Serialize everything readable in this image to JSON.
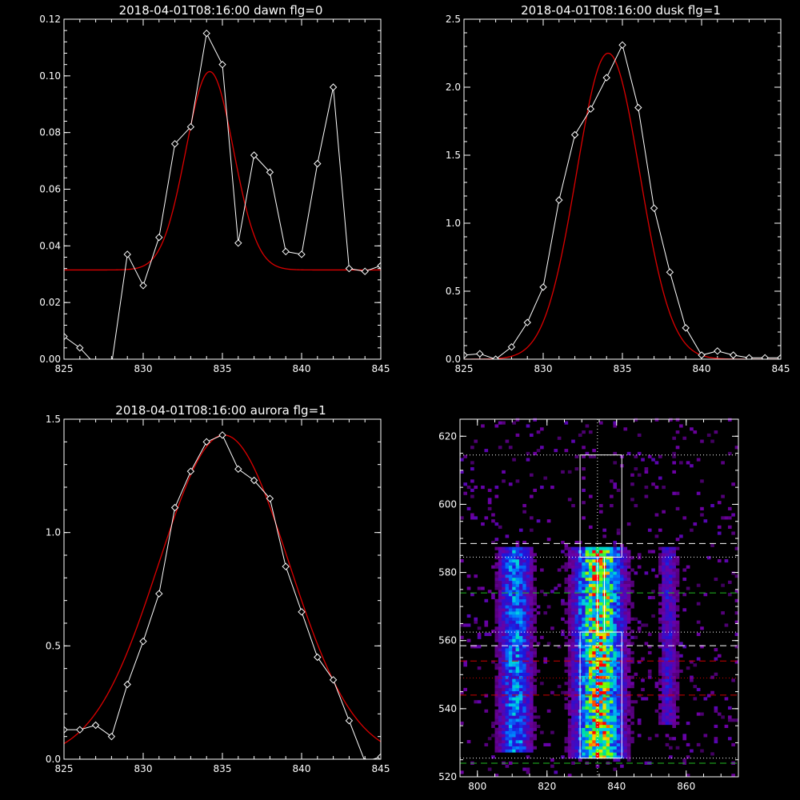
{
  "colors": {
    "background": "#000000",
    "axis": "#ffffff",
    "data": "#ffffff",
    "fit": "#dd0000"
  },
  "chart_data": [
    {
      "type": "line",
      "title": "2018-04-01T08:16:00 dawn flg=0",
      "xlim": [
        825,
        845
      ],
      "ylim": [
        0,
        0.12
      ],
      "xticks": [
        "825",
        "830",
        "835",
        "840",
        "845"
      ],
      "yticks": [
        "0.00",
        "0.02",
        "0.04",
        "0.06",
        "0.08",
        "0.10",
        "0.12"
      ],
      "series": [
        {
          "role": "data",
          "marker": "diamond",
          "x": [
            825,
            826,
            827,
            828,
            829,
            830,
            831,
            832,
            833,
            834,
            835,
            836,
            837,
            838,
            839,
            840,
            841,
            842,
            843,
            844,
            845
          ],
          "y": [
            0.008,
            0.004,
            -0.002,
            -0.002,
            0.037,
            0.026,
            0.043,
            0.076,
            0.082,
            0.115,
            0.104,
            0.041,
            0.072,
            0.066,
            0.038,
            0.037,
            0.069,
            0.096,
            0.032,
            0.031,
            0.033
          ]
        },
        {
          "role": "fit",
          "shape": "gaussian",
          "peak_x": 834.2,
          "peak_y": 0.1015,
          "baseline": 0.0315,
          "sigma": 1.5
        }
      ]
    },
    {
      "type": "line",
      "title": "2018-04-01T08:16:00 dusk flg=1",
      "xlim": [
        825,
        845
      ],
      "ylim": [
        0,
        2.5
      ],
      "xticks": [
        "825",
        "830",
        "835",
        "840",
        "845"
      ],
      "yticks": [
        "0.0",
        "0.5",
        "1.0",
        "1.5",
        "2.0",
        "2.5"
      ],
      "series": [
        {
          "role": "data",
          "marker": "diamond",
          "x": [
            825,
            826,
            827,
            828,
            829,
            830,
            831,
            832,
            833,
            834,
            835,
            836,
            837,
            838,
            839,
            840,
            841,
            842,
            843,
            844,
            845
          ],
          "y": [
            0.03,
            0.04,
            0.0,
            0.09,
            0.27,
            0.53,
            1.17,
            1.65,
            1.84,
            2.07,
            2.31,
            1.85,
            1.11,
            0.64,
            0.23,
            0.03,
            0.06,
            0.03,
            0.01,
            0.01,
            0.01
          ]
        },
        {
          "role": "fit",
          "shape": "gaussian",
          "peak_x": 834.1,
          "peak_y": 2.25,
          "baseline": 0.0,
          "sigma": 2.0
        }
      ]
    },
    {
      "type": "line",
      "title": "2018-04-01T08:16:00 aurora flg=1",
      "xlim": [
        825,
        845
      ],
      "ylim": [
        0,
        1.5
      ],
      "xticks": [
        "825",
        "830",
        "835",
        "840",
        "845"
      ],
      "yticks": [
        "0.0",
        "0.5",
        "1.0",
        "1.5"
      ],
      "series": [
        {
          "role": "data",
          "marker": "diamond",
          "x": [
            825,
            826,
            827,
            828,
            829,
            830,
            831,
            832,
            833,
            834,
            835,
            836,
            837,
            838,
            839,
            840,
            841,
            842,
            843,
            844,
            845
          ],
          "y": [
            0.13,
            0.13,
            0.15,
            0.1,
            0.33,
            0.52,
            0.73,
            1.11,
            1.27,
            1.4,
            1.43,
            1.28,
            1.23,
            1.15,
            0.85,
            0.65,
            0.45,
            0.35,
            0.17,
            -0.01,
            0.01
          ]
        },
        {
          "role": "fit",
          "shape": "gaussian",
          "peak_x": 835.1,
          "peak_y": 1.43,
          "baseline": 0.0,
          "sigma": 4.1
        }
      ]
    },
    {
      "type": "heatmap",
      "title": "",
      "xlim": [
        795,
        875
      ],
      "ylim": [
        520,
        625
      ],
      "xticks": [
        "800",
        "820",
        "840",
        "860"
      ],
      "yticks": [
        "520",
        "540",
        "560",
        "580",
        "600",
        "620"
      ],
      "colormap": "rainbow",
      "intensity_columns": [
        {
          "x_center": 811,
          "width": 5,
          "y_range": [
            527,
            587
          ],
          "peak": 0.55
        },
        {
          "x_center": 835,
          "width": 7,
          "y_range": [
            525,
            587
          ],
          "peak": 1.0
        },
        {
          "x_center": 855,
          "width": 3,
          "y_range": [
            535,
            587
          ],
          "peak": 0.3
        }
      ],
      "boxes": [
        {
          "x": [
            829.5,
            841.5
          ],
          "y": [
            584.5,
            614.5
          ],
          "color": "#ffffff"
        },
        {
          "x": [
            829.5,
            841.5
          ],
          "y": [
            525.5,
            562.5
          ],
          "color": "#ffffff"
        },
        {
          "x": [
            834.5,
            836.5
          ],
          "y": [
            562.5,
            584.5
          ],
          "color": "#ffffff"
        }
      ],
      "hlines": [
        {
          "y": 614.5,
          "style": "dotted",
          "color": "#ffffff"
        },
        {
          "y": 588.5,
          "style": "dashed",
          "color": "#ffffff"
        },
        {
          "y": 584.5,
          "style": "dotted",
          "color": "#ffffff"
        },
        {
          "y": 574,
          "style": "dashed",
          "color": "#22bb22"
        },
        {
          "y": 562.5,
          "style": "dotted",
          "color": "#ffffff"
        },
        {
          "y": 558.5,
          "style": "dashed",
          "color": "#ffffff"
        },
        {
          "y": 554,
          "style": "dashed",
          "color": "#cc0000"
        },
        {
          "y": 549,
          "style": "dotted",
          "color": "#cc0000"
        },
        {
          "y": 544,
          "style": "dashed",
          "color": "#cc0000"
        },
        {
          "y": 525.5,
          "style": "dotted",
          "color": "#ffffff"
        },
        {
          "y": 524,
          "style": "dashed",
          "color": "#22bb22"
        }
      ],
      "vlines": [
        {
          "x": 834.5,
          "style": "dotted",
          "color": "#ffffff"
        }
      ]
    }
  ]
}
